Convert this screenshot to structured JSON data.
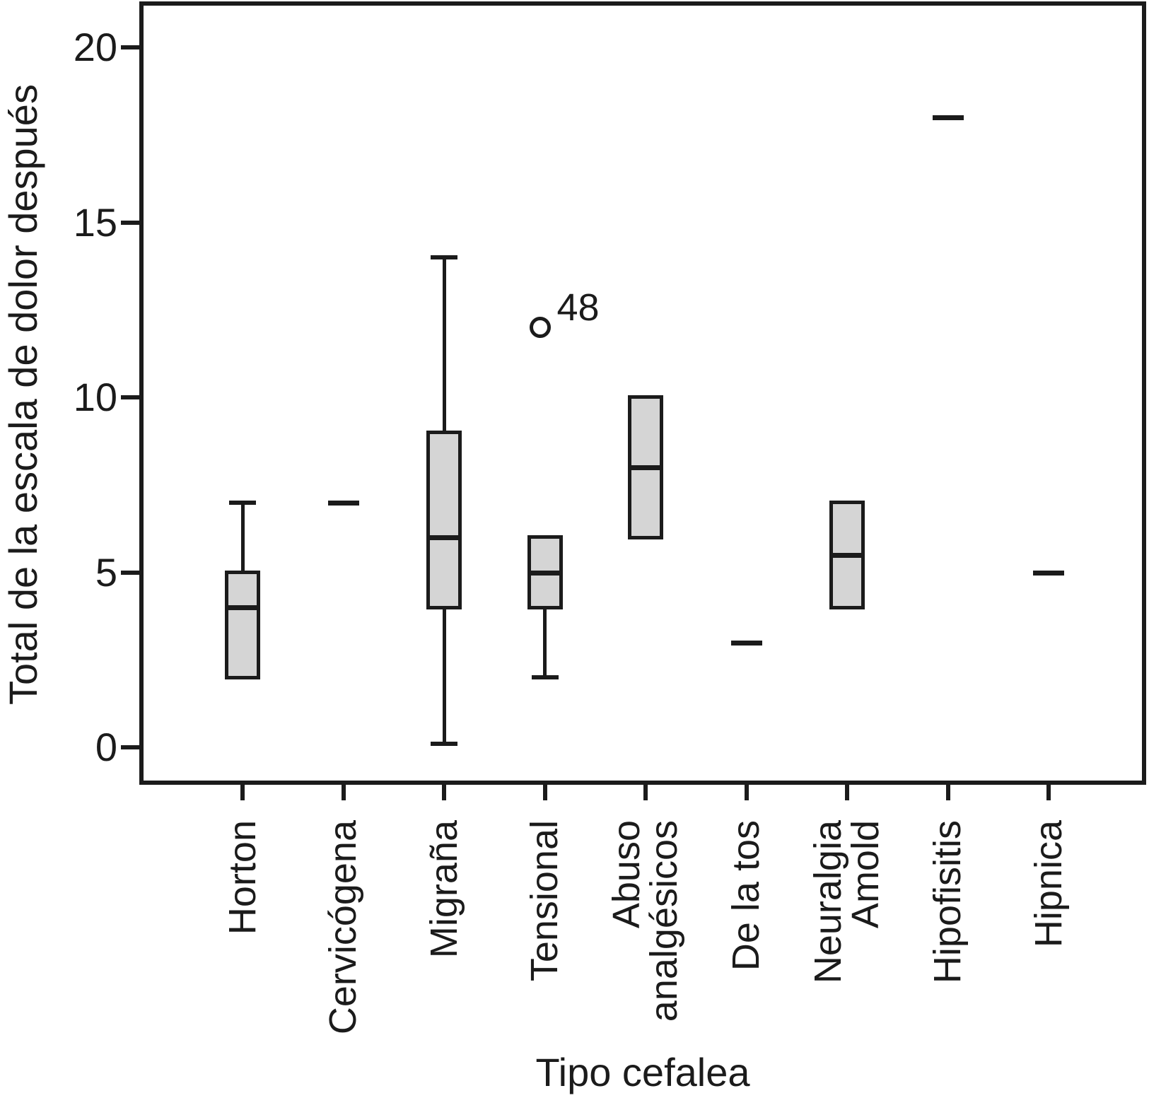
{
  "chart_data": {
    "type": "box",
    "title": "",
    "xlabel": "Tipo cefalea",
    "ylabel": "Total de la escala de dolor después",
    "ylim": [
      0,
      20
    ],
    "yticks": [
      0,
      5,
      10,
      15,
      20
    ],
    "grid": false,
    "legend": false,
    "ink_color": "#1b1b1b",
    "box_fill_color": "#d5d5d5",
    "categories": [
      "Horton",
      "Cervicógena",
      "Migraña",
      "Tensional",
      "Abuso analgésicos",
      "De la tos",
      "Neuralgia Amold",
      "Hipofisitis",
      "Hipnica"
    ],
    "category_label_lines": [
      [
        "Horton"
      ],
      [
        "Cervicógena"
      ],
      [
        "Migraña"
      ],
      [
        "Tensional"
      ],
      [
        "Abuso",
        "analgésicos"
      ],
      [
        "De la tos"
      ],
      [
        "Neuralgia",
        "Amold"
      ],
      [
        "Hipofisitis"
      ],
      [
        "Hipnica"
      ]
    ],
    "series": [
      {
        "category": "Horton",
        "q1": 2,
        "median": 4,
        "q3": 5,
        "whisker_high": 7
      },
      {
        "category": "Cervicógena",
        "value": 7
      },
      {
        "category": "Migraña",
        "q1": 4,
        "median": 6,
        "q3": 9,
        "whisker_low": 0.1,
        "whisker_high": 14
      },
      {
        "category": "Tensional",
        "q1": 4,
        "median": 5,
        "q3": 6,
        "whisker_low": 2,
        "outlier": {
          "value": 12,
          "label": "48"
        }
      },
      {
        "category": "Abuso analgésicos",
        "q1": 6,
        "median": 8,
        "q3": 10
      },
      {
        "category": "De la tos",
        "value": 3
      },
      {
        "category": "Neuralgia Amold",
        "q1": 4,
        "median": 5.5,
        "q3": 7
      },
      {
        "category": "Hipofisitis",
        "value": 18
      },
      {
        "category": "Hipnica",
        "value": 5
      }
    ]
  }
}
